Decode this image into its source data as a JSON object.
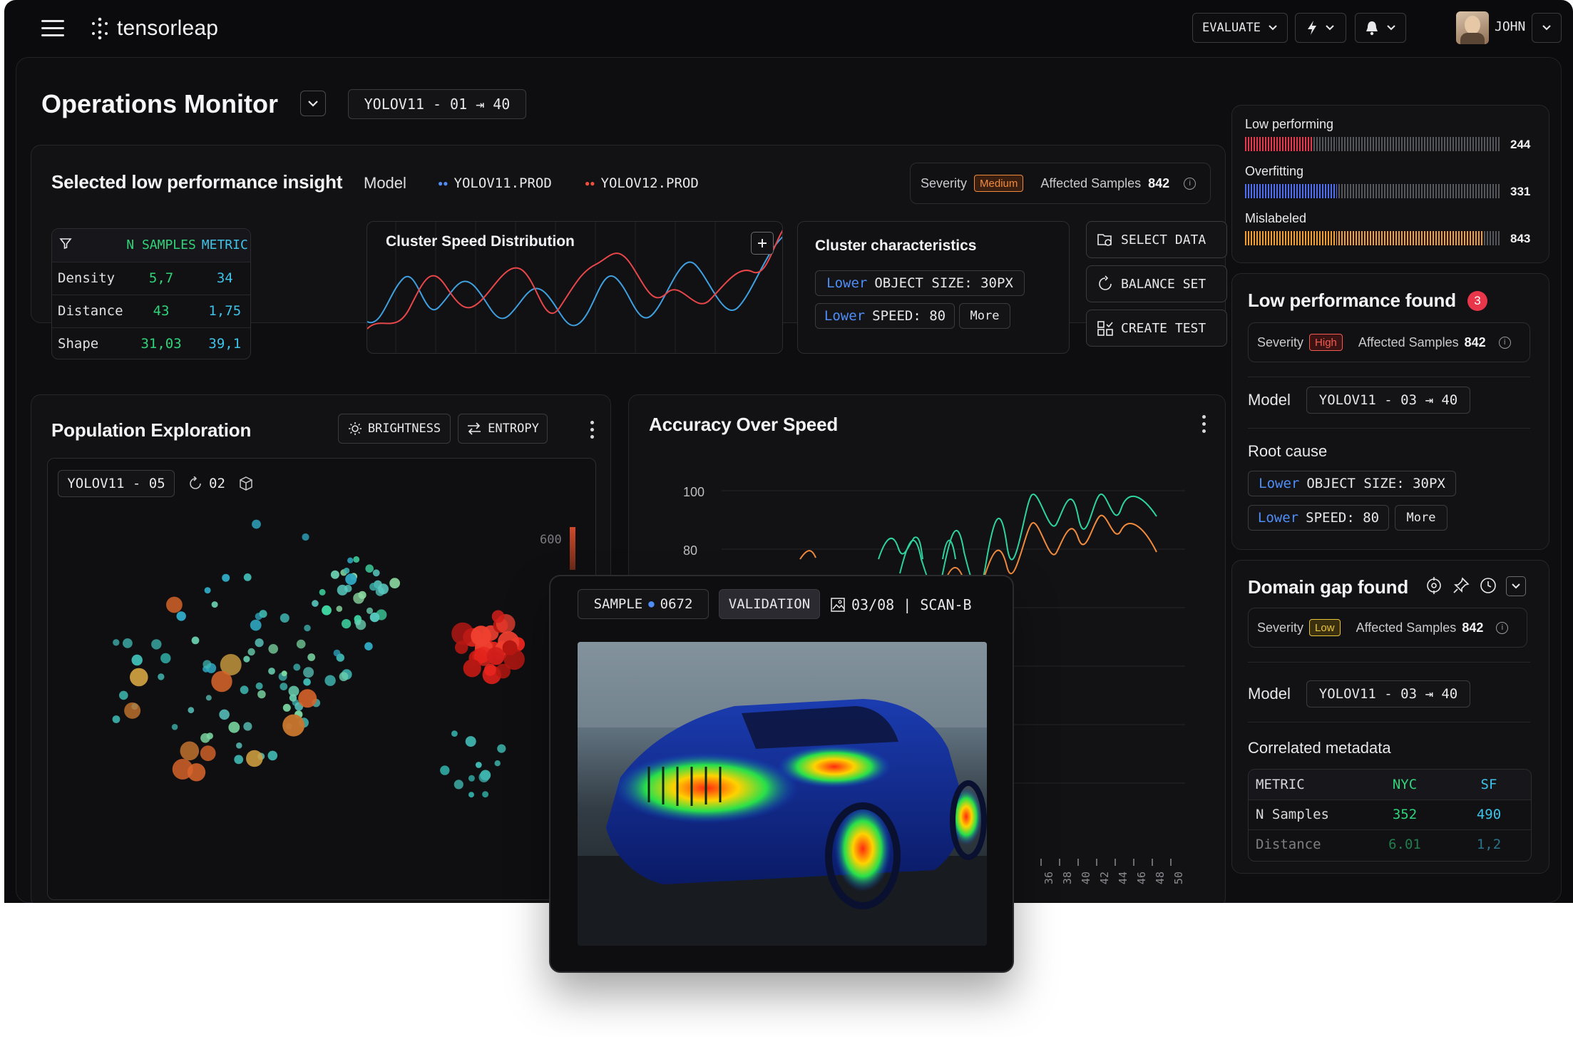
{
  "app": {
    "logo": "tensorleap",
    "user": "JOHN",
    "evaluate_label": "EVALUATE"
  },
  "page": {
    "title": "Operations Monitor",
    "version_chip": "YOLOV11 - 01 ⇥ 40"
  },
  "insight": {
    "title": "Selected low performance insight",
    "model_label": "Model",
    "models": [
      "YOLOV11.PROD",
      "YOLOV12.PROD"
    ],
    "severity_label": "Severity",
    "severity": "Medium",
    "affected_label": "Affected Samples",
    "affected": "842",
    "table": {
      "headers": [
        "N SAMPLES",
        "METRIC"
      ],
      "rows": [
        {
          "name": "Density",
          "n": "5,7",
          "metric": "34"
        },
        {
          "name": "Distance",
          "n": "43",
          "metric": "1,75"
        },
        {
          "name": "Shape",
          "n": "31,03",
          "metric": "39,1"
        }
      ]
    },
    "chart_title": "Cluster Speed Distribution",
    "characteristics_title": "Cluster characteristics",
    "characteristics": [
      {
        "prefix": "Lower",
        "text": "OBJECT SIZE: 30PX"
      },
      {
        "prefix": "Lower",
        "text": "SPEED: 80"
      }
    ],
    "more_label": "More",
    "actions": [
      "SELECT DATA",
      "BALANCE SET",
      "CREATE TEST"
    ]
  },
  "population": {
    "title": "Population Exploration",
    "buttons": [
      "BRIGHTNESS",
      "ENTROPY"
    ],
    "chip": "YOLOV11 - 05",
    "count": "02",
    "scale_label": "600"
  },
  "accuracy": {
    "title": "Accuracy Over Speed",
    "y_ticks": [
      "100",
      "80"
    ],
    "x_ticks": [
      "36",
      "38",
      "40",
      "42",
      "44",
      "46",
      "48",
      "50"
    ]
  },
  "sample": {
    "label": "SAMPLE",
    "id": "0672",
    "split": "VALIDATION",
    "frame": "03/08 | SCAN-B"
  },
  "side": {
    "bars": [
      {
        "label": "Low performing",
        "value": "244",
        "color": "#e8374a"
      },
      {
        "label": "Overfitting",
        "value": "331",
        "color": "#4f6cf7"
      },
      {
        "label": "Mislabeled",
        "value": "843",
        "color": "#f59e2e"
      }
    ],
    "low_perf": {
      "title": "Low performance found",
      "badge": "3",
      "severity_label": "Severity",
      "severity": "High",
      "affected_label": "Affected Samples",
      "affected": "842",
      "model_label": "Model",
      "model_chip": "YOLOV11 - 03 ⇥ 40",
      "root_cause_label": "Root cause",
      "causes": [
        {
          "prefix": "Lower",
          "text": "OBJECT SIZE: 30PX"
        },
        {
          "prefix": "Lower",
          "text": "SPEED: 80"
        }
      ],
      "more_label": "More"
    },
    "domain_gap": {
      "title": "Domain gap found",
      "severity_label": "Severity",
      "severity": "Low",
      "affected_label": "Affected Samples",
      "affected": "842",
      "model_label": "Model",
      "model_chip": "YOLOV11 - 03 ⇥ 40",
      "correlated_label": "Correlated metadata",
      "headers": [
        "METRIC",
        "NYC",
        "SF"
      ],
      "rows": [
        {
          "name": "N Samples",
          "nyc": "352",
          "sf": "490"
        },
        {
          "name": "Distance",
          "nyc": "6.01",
          "sf": "1,2"
        }
      ]
    }
  }
}
